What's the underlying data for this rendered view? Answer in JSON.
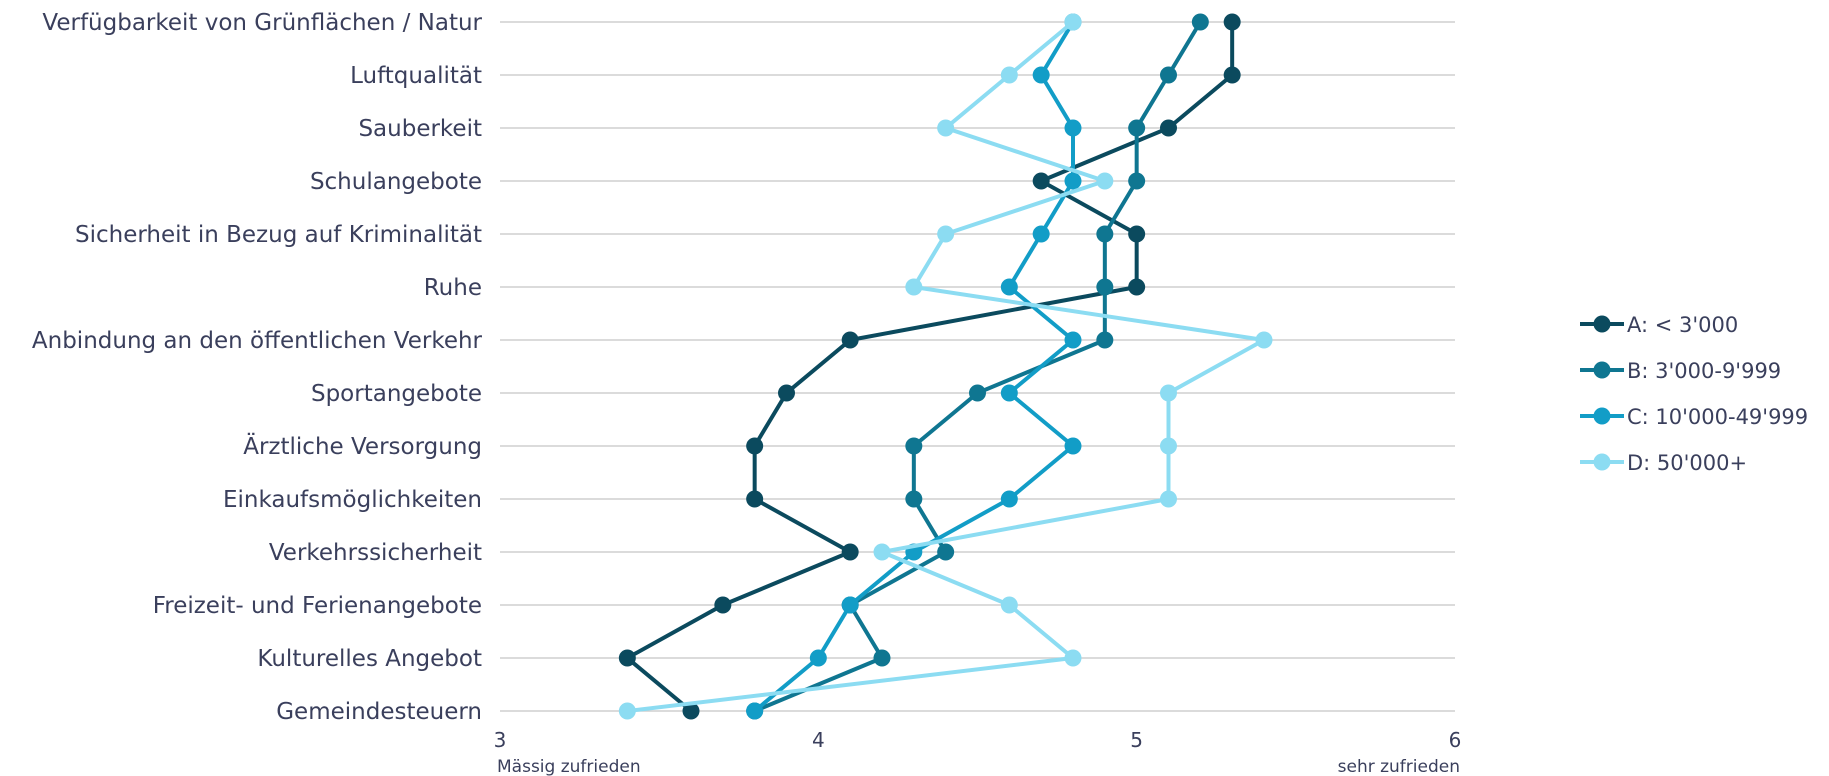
{
  "chart_data": {
    "type": "line",
    "orientation": "horizontal-categories",
    "categories": [
      "Verfügbarkeit von Grünflächen / Natur",
      "Luftqualität",
      "Sauberkeit",
      "Schulangebote",
      "Sicherheit in Bezug auf Kriminalität",
      "Ruhe",
      "Anbindung an den öffentlichen Verkehr",
      "Sportangebote",
      "Ärztliche Versorgung",
      "Einkaufsmöglichkeiten",
      "Verkehrssicherheit",
      "Freizeit- und Ferienangebote",
      "Kulturelles Angebot",
      "Gemeindesteuern"
    ],
    "series": [
      {
        "name": "A: < 3'000",
        "color": "#0b4a5e",
        "values": [
          5.3,
          5.3,
          5.1,
          4.7,
          5.0,
          5.0,
          4.1,
          3.9,
          3.8,
          3.8,
          4.1,
          3.7,
          3.4,
          3.6
        ]
      },
      {
        "name": "B: 3'000-9'999",
        "color": "#0f7691",
        "values": [
          5.2,
          5.1,
          5.0,
          5.0,
          4.9,
          4.9,
          4.9,
          4.5,
          4.3,
          4.3,
          4.4,
          4.1,
          4.2,
          3.8
        ]
      },
      {
        "name": "C: 10'000-49'999",
        "color": "#129dc7",
        "values": [
          4.8,
          4.7,
          4.8,
          4.8,
          4.7,
          4.6,
          4.8,
          4.6,
          4.8,
          4.6,
          4.3,
          4.1,
          4.0,
          3.8
        ]
      },
      {
        "name": "D: 50'000+",
        "color": "#8cdcf2",
        "values": [
          4.8,
          4.6,
          4.4,
          4.9,
          4.4,
          4.3,
          5.4,
          5.1,
          5.1,
          5.1,
          4.2,
          4.6,
          4.8,
          3.4
        ]
      }
    ],
    "xlim": [
      3,
      6
    ],
    "xticks": [
      "3",
      "4",
      "5",
      "6"
    ],
    "xlabel_left": "Mässig zufrieden",
    "xlabel_right": "sehr zufrieden",
    "grid": true,
    "legend_position": "right"
  }
}
